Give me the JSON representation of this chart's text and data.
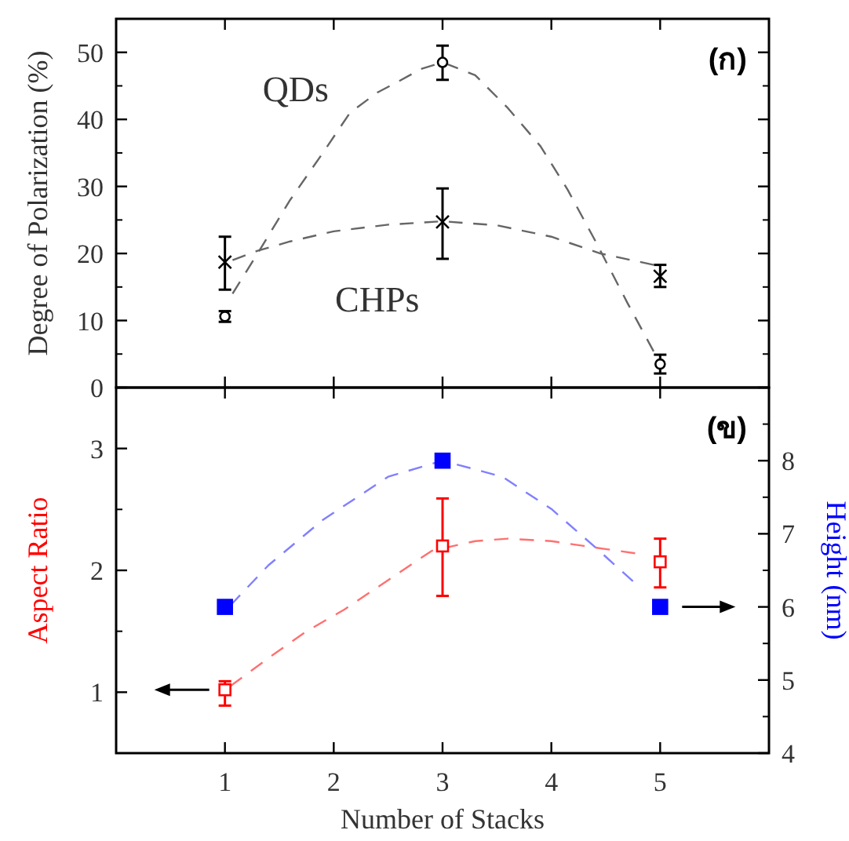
{
  "chart_data": [
    {
      "type": "scatter",
      "ylabel": "Degree of Polarization (%)",
      "x": [
        1,
        3,
        5
      ],
      "xlim": [
        0,
        6
      ],
      "xticks": [
        1,
        2,
        3,
        4,
        5
      ],
      "ylim": [
        0,
        55
      ],
      "yticks": [
        0,
        10,
        20,
        30,
        40,
        50
      ],
      "tick_labels": "y",
      "annotations": [
        "(ก)",
        "QDs",
        "CHPs"
      ],
      "series": [
        {
          "type": "line",
          "color": "#666666",
          "line_style": "dashed",
          "x": [
            1.07,
            1.3,
            1.6,
            1.9,
            2.15,
            2.4,
            2.6,
            2.8,
            3,
            3.3,
            3.6,
            3.9,
            4.15,
            4.4,
            4.7,
            4.94
          ],
          "values": [
            14,
            20,
            28,
            35,
            41,
            44,
            45.7,
            47.5,
            48.5,
            46.6,
            41.7,
            36,
            29.5,
            22,
            12.6,
            5.4
          ]
        },
        {
          "type": "line",
          "color": "#666666",
          "line_style": "dashed",
          "x": [
            1.07,
            1.3,
            1.6,
            2,
            2.5,
            3,
            3.5,
            4,
            4.45,
            4.94
          ],
          "values": [
            19,
            20.4,
            21.8,
            23.3,
            24.3,
            24.8,
            24.2,
            22.5,
            20,
            18.3
          ]
        },
        {
          "color": "#000000",
          "marker": "circle",
          "values": [
            10.6,
            48.5,
            3.5
          ],
          "errors": [
            [
              9.8,
              11.4
            ],
            [
              45.9,
              51
            ],
            [
              2.1,
              4.9
            ]
          ]
        },
        {
          "color": "#000000",
          "marker": "cross",
          "values": [
            18.7,
            24.7,
            16.6
          ],
          "errors": [
            [
              14.6,
              22.5
            ],
            [
              19.2,
              29.7
            ],
            [
              15,
              18.3
            ]
          ]
        }
      ]
    },
    {
      "type": "scatter",
      "xlabel": "Number of Stacks",
      "ylabel": "Aspect Ratio",
      "y2label": "Height (nm)",
      "x": [
        1,
        3,
        5
      ],
      "xlim": [
        0,
        6
      ],
      "xticks": [
        1,
        2,
        3,
        4,
        5
      ],
      "ylim": [
        0.5,
        3.5
      ],
      "yticks": [
        1,
        2,
        3
      ],
      "y2lim": [
        4,
        9
      ],
      "y2ticks": [
        4,
        5,
        6,
        7,
        8
      ],
      "annotations": [
        "(ข)"
      ],
      "series": [
        {
          "type": "line",
          "color": "#ff7070",
          "line_style": "dashed",
          "x": [
            1.05,
            1.4,
            1.75,
            2.1,
            2.5,
            2.9,
            3.3,
            3.6,
            4,
            4.3,
            4.77
          ],
          "values": [
            1.05,
            1.28,
            1.5,
            1.68,
            1.92,
            2.16,
            2.24,
            2.26,
            2.24,
            2.2,
            2.14
          ]
        },
        {
          "type": "line",
          "color": "#8080ff",
          "line_style": "dashed",
          "axis": "y2",
          "x": [
            1.05,
            1.4,
            1.9,
            2.5,
            3,
            3.55,
            4,
            4.4,
            4.75
          ],
          "values": [
            6.02,
            6.57,
            7.19,
            7.78,
            8,
            7.78,
            7.34,
            6.82,
            6.35
          ]
        },
        {
          "color": "#ff0000",
          "marker": "square",
          "values": [
            1.02,
            2.2,
            2.07
          ],
          "errors": [
            [
              0.89,
              1.09
            ],
            [
              1.79,
              2.59
            ],
            [
              1.86,
              2.26
            ]
          ]
        },
        {
          "color": "#0000ff",
          "marker": "square",
          "axis": "y2",
          "values": [
            6,
            8,
            6
          ]
        }
      ]
    }
  ]
}
